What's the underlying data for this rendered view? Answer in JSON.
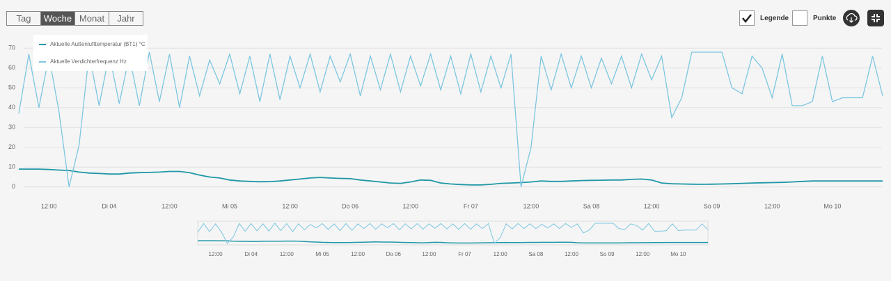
{
  "range_buttons": {
    "labels": [
      "Tag",
      "Woche",
      "Monat",
      "Jahr"
    ],
    "active": 1
  },
  "toggles": [
    {
      "label": "Legende",
      "checked": true
    },
    {
      "label": "Punkte",
      "checked": false
    }
  ],
  "chart_data": {
    "type": "line",
    "categories": [
      null,
      null,
      null,
      "12:00",
      null,
      null,
      null,
      null,
      null,
      "Di 04",
      null,
      null,
      null,
      null,
      null,
      "12:00",
      null,
      null,
      null,
      null,
      null,
      "Mi 05",
      null,
      null,
      null,
      null,
      null,
      "12:00",
      null,
      null,
      null,
      null,
      null,
      "Do 06",
      null,
      null,
      null,
      null,
      null,
      "12:00",
      null,
      null,
      null,
      null,
      null,
      "Fr 07",
      null,
      null,
      null,
      null,
      null,
      "12:00",
      null,
      null,
      null,
      null,
      null,
      "Sa 08",
      null,
      null,
      null,
      null,
      null,
      "12:00",
      null,
      null,
      null,
      null,
      null,
      "So 09",
      null,
      null,
      null,
      null,
      null,
      "12:00",
      null,
      null,
      null,
      null,
      null,
      "Mo 10",
      null,
      null,
      null,
      null,
      null
    ],
    "series": [
      {
        "name": "Aktuelle Außenlufttemperatur (BT1) °C",
        "color": "#1f97a6",
        "values": [
          9,
          9,
          9,
          8.8,
          8.5,
          8.3,
          7.5,
          7,
          6.8,
          6.5,
          6.5,
          7,
          7.2,
          7.3,
          7.5,
          7.8,
          7.8,
          7.2,
          6,
          5,
          4.5,
          3.5,
          3,
          2.8,
          2.6,
          2.7,
          3,
          3.5,
          4,
          4.5,
          4.8,
          4.5,
          4.3,
          4.2,
          3.5,
          3,
          2.5,
          2,
          1.8,
          2.5,
          3.5,
          3.3,
          2,
          1.5,
          1.2,
          1,
          1,
          1.3,
          1.8,
          2,
          2.2,
          2.5,
          3,
          2.8,
          2.8,
          3,
          3.2,
          3.3,
          3.4,
          3.5,
          3.5,
          3.8,
          4,
          3.5,
          2,
          1.6,
          1.5,
          1.4,
          1.3,
          1.4,
          1.5,
          1.6,
          1.8,
          2,
          2.1,
          2.2,
          2.3,
          2.5,
          2.8,
          3,
          3,
          3,
          3,
          3,
          3,
          3,
          3
        ]
      },
      {
        "name": "Aktuelle Verdichterfrequenz Hz",
        "color": "#7cc6e0",
        "values": [
          37,
          67,
          40,
          66,
          38,
          0,
          21,
          67,
          41,
          67,
          42,
          66,
          41,
          68,
          43,
          67,
          40,
          66,
          46,
          64,
          52,
          67,
          47,
          66,
          43,
          67,
          44,
          66,
          50,
          67,
          48,
          66,
          53,
          67,
          46,
          66,
          49,
          67,
          48,
          66,
          51,
          67,
          49,
          66,
          47,
          67,
          48,
          66,
          50,
          67,
          0,
          20,
          66,
          49,
          67,
          50,
          66,
          50,
          65,
          52,
          66,
          50,
          67,
          54,
          66,
          35,
          45,
          68,
          68,
          68,
          68,
          50,
          47,
          66,
          60,
          45,
          67,
          41,
          41,
          43,
          66,
          43,
          45,
          45,
          45,
          66,
          46
        ]
      }
    ],
    "ylim": [
      -5,
      75
    ],
    "yticks": [
      0,
      10,
      20,
      30,
      40,
      50,
      60,
      70
    ],
    "grid": true
  }
}
